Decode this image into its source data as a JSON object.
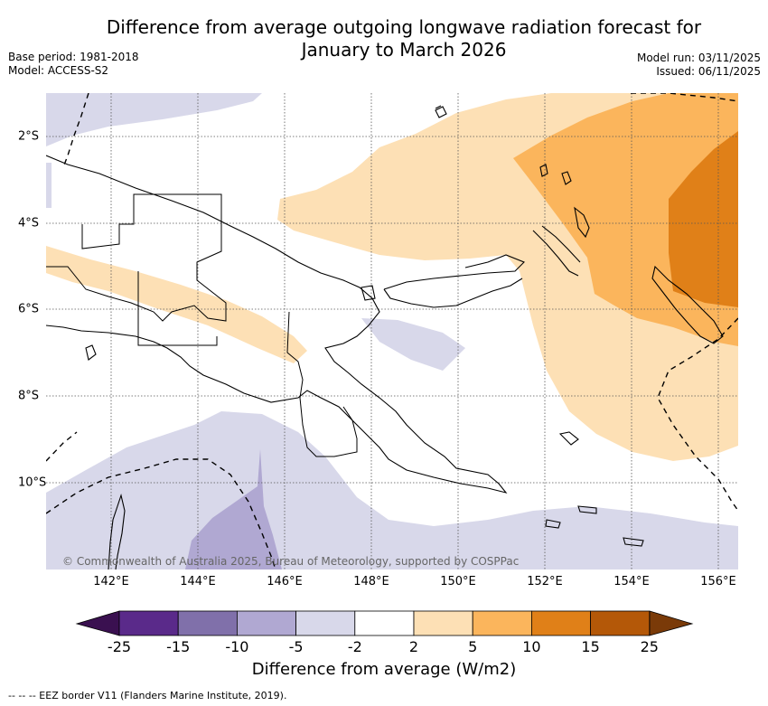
{
  "title_line1": "Difference from average outgoing longwave radiation forecast for",
  "title_line2": "January to March 2026",
  "base_period": "Base period: 1981-2018",
  "model": "Model: ACCESS-S2",
  "model_run": "Model run: 03/11/2025",
  "issued": "Issued: 06/11/2025",
  "copyright": "© Commonwealth of Australia 2025, Bureau of Meteorology, supported by COSPPac",
  "x_ticks": [
    "142°E",
    "144°E",
    "146°E",
    "148°E",
    "150°E",
    "152°E",
    "154°E",
    "156°E"
  ],
  "y_ticks": [
    "2°S",
    "4°S",
    "6°S",
    "8°S",
    "10°S"
  ],
  "colorbar": {
    "title": "Difference from average (W/m2)",
    "labels": [
      "-25",
      "-15",
      "-10",
      "-5",
      "-2",
      "2",
      "5",
      "10",
      "15",
      "25"
    ],
    "colors": [
      "#5a2a8a",
      "#8070aa",
      "#b0a8d2",
      "#d8d8ea",
      "#ffffff",
      "#fde0b5",
      "#fbb55c",
      "#e08018",
      "#b45808"
    ],
    "under_color": "#3a1050",
    "over_color": "#7a3a08"
  },
  "eez_note": "--  --  -- EEZ border V11 (Flanders Marine Institute, 2019)."
}
